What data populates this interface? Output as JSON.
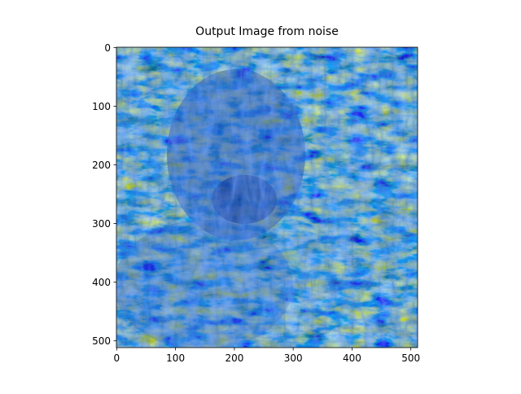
{
  "chart_data": {
    "type": "image",
    "title": "Output Image from noise",
    "xlim": [
      -0.5,
      511.5
    ],
    "ylim": [
      511.5,
      -0.5
    ],
    "xticks": [
      0,
      100,
      200,
      300,
      400,
      500
    ],
    "yticks": [
      0,
      100,
      200,
      300,
      400,
      500
    ]
  }
}
